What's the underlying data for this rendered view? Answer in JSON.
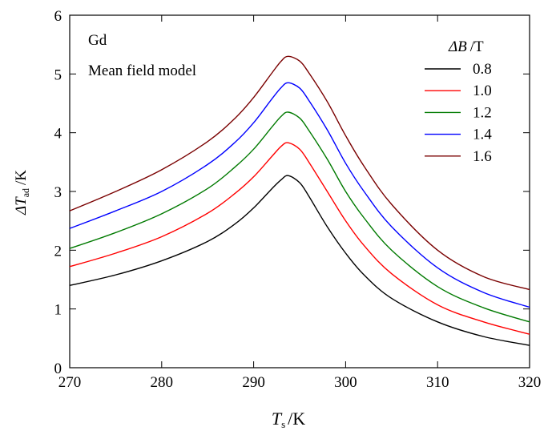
{
  "chart_data": {
    "type": "line",
    "x_label": {
      "symbol": "T",
      "subscript": "s",
      "unit": "/K"
    },
    "y_label": {
      "symbol": "ΔT",
      "subscript": "ad",
      "unit": "/K"
    },
    "annotations": [
      "Gd",
      "Mean field model"
    ],
    "legend_title": {
      "symbol": "ΔB",
      "unit": "/T"
    },
    "legend": "upper right",
    "x": [
      270,
      275,
      280,
      285,
      288,
      290,
      292,
      293,
      293.75,
      295,
      296,
      298,
      300,
      302,
      305,
      310,
      315,
      320
    ],
    "series": [
      {
        "name": "0.8",
        "color": "#000000",
        "values": [
          1.4,
          1.58,
          1.82,
          2.15,
          2.45,
          2.72,
          3.05,
          3.2,
          3.27,
          3.15,
          2.92,
          2.4,
          1.95,
          1.58,
          1.18,
          0.78,
          0.53,
          0.38
        ]
      },
      {
        "name": "1.0",
        "color": "#ff0000",
        "values": [
          1.72,
          1.95,
          2.23,
          2.63,
          2.97,
          3.25,
          3.6,
          3.77,
          3.83,
          3.72,
          3.5,
          3.0,
          2.5,
          2.08,
          1.6,
          1.07,
          0.78,
          0.57
        ]
      },
      {
        "name": "1.2",
        "color": "#007a00",
        "values": [
          2.03,
          2.3,
          2.62,
          3.05,
          3.42,
          3.72,
          4.1,
          4.28,
          4.35,
          4.25,
          4.04,
          3.55,
          3.0,
          2.55,
          2.0,
          1.38,
          1.02,
          0.78
        ]
      },
      {
        "name": "1.4",
        "color": "#0000ff",
        "values": [
          2.37,
          2.67,
          3.0,
          3.46,
          3.84,
          4.17,
          4.58,
          4.77,
          4.85,
          4.76,
          4.55,
          4.05,
          3.48,
          3.0,
          2.4,
          1.7,
          1.28,
          1.03
        ]
      },
      {
        "name": "1.6",
        "color": "#7a0000",
        "values": [
          2.67,
          3.0,
          3.37,
          3.85,
          4.25,
          4.6,
          5.02,
          5.22,
          5.3,
          5.22,
          5.02,
          4.53,
          3.95,
          3.43,
          2.78,
          2.0,
          1.55,
          1.33
        ]
      }
    ],
    "xlim": [
      270,
      320
    ],
    "xticks": [
      270,
      280,
      290,
      300,
      310,
      320
    ],
    "ylim": [
      0,
      6
    ],
    "yticks": [
      0,
      1,
      2,
      3,
      4,
      5,
      6
    ]
  }
}
